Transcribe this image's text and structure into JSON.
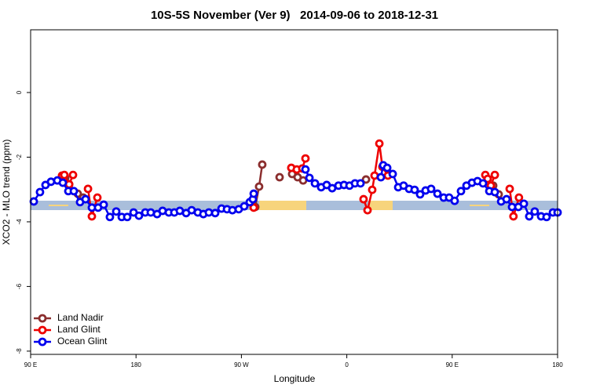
{
  "chart_data": {
    "type": "line",
    "title": "10S-5S November (Ver 9)   2014-09-06 to 2018-12-31",
    "xlabel": "Longitude",
    "ylabel": "XCO2 - MLO trend (ppm)",
    "xlim": [
      90,
      540
    ],
    "ylim": [
      -8.1,
      1.94
    ],
    "xticks": [
      {
        "value": 90,
        "label": "90 E"
      },
      {
        "value": 180,
        "label": "180"
      },
      {
        "value": 270,
        "label": "90 W"
      },
      {
        "value": 360,
        "label": "0"
      },
      {
        "value": 450,
        "label": "90 E"
      },
      {
        "value": 540,
        "label": "180"
      }
    ],
    "yticks": [
      0,
      -2,
      -4,
      -6,
      -8
    ],
    "legend": "lower left",
    "series": [
      {
        "name": "Land Nadir",
        "color": "#8b2e2e",
        "x": [
          119.5,
          122.9,
          130.2,
          134.9,
          null,
          281.8,
          285.1,
          287.8,
          null,
          302.6,
          null,
          313.3,
          318.0,
          322.7,
          null,
          376.4,
          null,
          485.0,
          489.7
        ],
        "values": [
          -2.64,
          -2.84,
          -3.13,
          -3.25,
          null,
          -3.54,
          -2.91,
          -2.23,
          null,
          -2.62,
          null,
          -2.52,
          -2.62,
          -2.72,
          null,
          -2.69,
          null,
          -2.88,
          -3.15
        ]
      },
      {
        "name": "Land Glint",
        "color": "#ee0000",
        "x": [
          116.8,
          118.8,
          122.9,
          126.2,
          null,
          139.0,
          142.3,
          147.0,
          null,
          280.5,
          null,
          312.6,
          317.3,
          322.0,
          324.7,
          null,
          374.3,
          377.7,
          381.7,
          383.7,
          387.8,
          390.4,
          395.1,
          null,
          478.3,
          480.3,
          483.0,
          486.4,
          null,
          499.1,
          502.3,
          507.0
        ],
        "values": [
          -2.57,
          -2.55,
          -2.84,
          -2.55,
          null,
          -2.98,
          -3.83,
          -3.25,
          null,
          -3.56,
          null,
          -2.33,
          -2.38,
          -2.35,
          -2.04,
          null,
          -3.3,
          -3.64,
          -3.01,
          -2.57,
          -1.58,
          -2.3,
          -2.57,
          null,
          -2.55,
          -2.67,
          -2.88,
          -2.55,
          null,
          -2.98,
          -3.83,
          -3.25
        ]
      },
      {
        "name": "Ocean Glint",
        "color": "#0000ee",
        "x": [
          92.7,
          98.0,
          102.7,
          107.4,
          112.8,
          117.5,
          122.2,
          126.9,
          132.2,
          136.9,
          142.3,
          147.6,
          152.4,
          157.7,
          163.1,
          167.8,
          172.5,
          177.9,
          182.5,
          187.9,
          192.6,
          198.0,
          202.7,
          208.0,
          212.7,
          217.4,
          222.8,
          227.5,
          232.8,
          237.5,
          242.2,
          247.6,
          253.0,
          257.7,
          262.3,
          267.7,
          272.4,
          277.1,
          279.8,
          280.5,
          null,
          324.7,
          328.1,
          332.8,
          338.1,
          342.8,
          347.5,
          352.9,
          357.6,
          362.3,
          367.0,
          371.7,
          null,
          389.1,
          391.1,
          394.5,
          399.2,
          403.9,
          408.5,
          413.2,
          417.9,
          422.6,
          427.3,
          432.0,
          437.4,
          442.7,
          447.4,
          452.1,
          457.5,
          462.2,
          466.9,
          471.6,
          476.3,
          481.7,
          486.4,
          491.8,
          496.4,
          501.1,
          506.5,
          511.2,
          515.8,
          520.5,
          525.9,
          530.6,
          536.0,
          540.0
        ],
        "values": [
          -3.37,
          -3.08,
          -2.86,
          -2.76,
          -2.72,
          -2.79,
          -3.05,
          -3.05,
          -3.39,
          -3.3,
          -3.56,
          -3.56,
          -3.47,
          -3.85,
          -3.68,
          -3.85,
          -3.85,
          -3.71,
          -3.81,
          -3.71,
          -3.71,
          -3.76,
          -3.66,
          -3.71,
          -3.71,
          -3.66,
          -3.73,
          -3.64,
          -3.71,
          -3.76,
          -3.71,
          -3.73,
          -3.59,
          -3.61,
          -3.64,
          -3.61,
          -3.52,
          -3.39,
          -3.3,
          -3.13,
          null,
          -2.38,
          -2.64,
          -2.81,
          -2.93,
          -2.86,
          -2.96,
          -2.88,
          -2.86,
          -2.88,
          -2.81,
          -2.81,
          null,
          -2.62,
          -2.25,
          -2.33,
          -2.52,
          -2.93,
          -2.88,
          -2.98,
          -3.01,
          -3.15,
          -3.03,
          -2.98,
          -3.13,
          -3.25,
          -3.25,
          -3.35,
          -3.05,
          -2.88,
          -2.79,
          -2.74,
          -2.81,
          -3.05,
          -3.08,
          -3.37,
          -3.3,
          -3.54,
          -3.54,
          -3.44,
          -3.83,
          -3.68,
          -3.83,
          -3.85,
          -3.71,
          -3.71
        ]
      }
    ]
  }
}
